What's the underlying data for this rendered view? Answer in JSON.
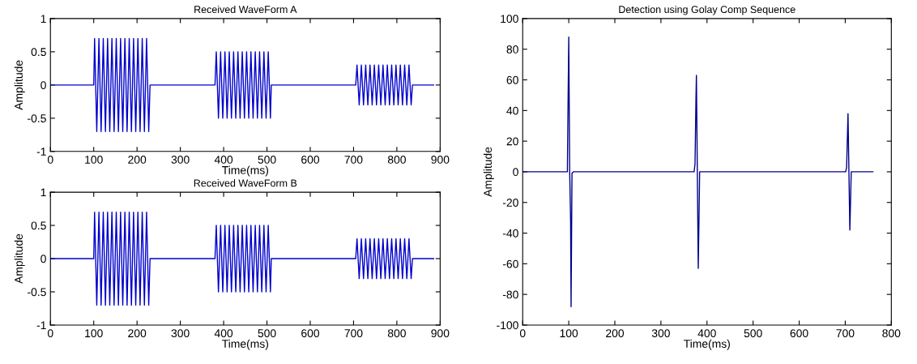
{
  "chart_data": [
    {
      "type": "line",
      "title": "Received WaveForm A",
      "xlabel": "Time(ms)",
      "ylabel": "Amplitude",
      "xlim": [
        0,
        900
      ],
      "xticks": [
        0,
        100,
        200,
        300,
        400,
        500,
        600,
        700,
        800,
        900
      ],
      "ylim": [
        -1,
        1
      ],
      "yticks": [
        -1,
        -0.5,
        0,
        0.5,
        1
      ],
      "series": [
        {
          "color": "#0000cc",
          "x": [
            0,
            100,
            102,
            107,
            112,
            117,
            122,
            127,
            132,
            137,
            142,
            147,
            152,
            157,
            162,
            167,
            172,
            177,
            182,
            187,
            192,
            197,
            202,
            207,
            212,
            217,
            222,
            227,
            230,
            380,
            383,
            388,
            393,
            398,
            403,
            408,
            413,
            418,
            423,
            428,
            433,
            438,
            443,
            448,
            453,
            458,
            463,
            468,
            473,
            478,
            483,
            488,
            493,
            498,
            503,
            508,
            510,
            705,
            708,
            713,
            718,
            723,
            728,
            733,
            738,
            743,
            748,
            753,
            758,
            763,
            768,
            773,
            778,
            783,
            788,
            793,
            798,
            803,
            808,
            813,
            818,
            823,
            828,
            833,
            836,
            885
          ],
          "values": [
            0,
            0,
            0.7,
            -0.7,
            0.7,
            -0.7,
            0.7,
            -0.7,
            0.7,
            -0.7,
            0.7,
            -0.7,
            0.7,
            -0.7,
            0.7,
            -0.7,
            0.7,
            -0.7,
            0.7,
            -0.7,
            0.7,
            -0.7,
            0.7,
            -0.7,
            0.7,
            -0.7,
            0.7,
            -0.7,
            0,
            0,
            0.5,
            -0.5,
            0.5,
            -0.5,
            0.5,
            -0.5,
            0.5,
            -0.5,
            0.5,
            -0.5,
            0.5,
            -0.5,
            0.5,
            -0.5,
            0.5,
            -0.5,
            0.5,
            -0.5,
            0.5,
            -0.5,
            0.5,
            -0.5,
            0.5,
            -0.5,
            0.5,
            -0.5,
            0,
            0,
            0.3,
            -0.3,
            0.3,
            -0.3,
            0.3,
            -0.3,
            0.3,
            -0.3,
            0.3,
            -0.3,
            0.3,
            -0.3,
            0.3,
            -0.3,
            0.3,
            -0.3,
            0.3,
            -0.3,
            0.3,
            -0.3,
            0.3,
            -0.3,
            0.3,
            -0.3,
            0.3,
            -0.3,
            0,
            0
          ]
        }
      ]
    },
    {
      "type": "line",
      "title": "Received WaveForm B",
      "xlabel": "Time(ms)",
      "ylabel": "Amplitude",
      "xlim": [
        0,
        900
      ],
      "xticks": [
        0,
        100,
        200,
        300,
        400,
        500,
        600,
        700,
        800,
        900
      ],
      "ylim": [
        -1,
        1
      ],
      "yticks": [
        -1,
        -0.5,
        0,
        0.5,
        1
      ],
      "series": [
        {
          "color": "#0000cc",
          "x": [
            0,
            100,
            102,
            107,
            112,
            117,
            122,
            127,
            132,
            137,
            142,
            147,
            152,
            157,
            162,
            167,
            172,
            177,
            182,
            187,
            192,
            197,
            202,
            207,
            212,
            217,
            222,
            227,
            230,
            380,
            383,
            388,
            393,
            398,
            403,
            408,
            413,
            418,
            423,
            428,
            433,
            438,
            443,
            448,
            453,
            458,
            463,
            468,
            473,
            478,
            483,
            488,
            493,
            498,
            503,
            508,
            510,
            705,
            708,
            713,
            718,
            723,
            728,
            733,
            738,
            743,
            748,
            753,
            758,
            763,
            768,
            773,
            778,
            783,
            788,
            793,
            798,
            803,
            808,
            813,
            818,
            823,
            828,
            833,
            836,
            885
          ],
          "values": [
            0,
            0,
            0.7,
            -0.7,
            0.7,
            -0.7,
            0.7,
            -0.7,
            0.7,
            -0.7,
            0.7,
            -0.7,
            0.7,
            -0.7,
            0.7,
            -0.7,
            0.7,
            -0.7,
            0.7,
            -0.7,
            0.7,
            -0.7,
            0.7,
            -0.7,
            0.7,
            -0.7,
            0.7,
            -0.7,
            0,
            0,
            0.5,
            -0.5,
            0.5,
            -0.5,
            0.5,
            -0.5,
            0.5,
            -0.5,
            0.5,
            -0.5,
            0.5,
            -0.5,
            0.5,
            -0.5,
            0.5,
            -0.5,
            0.5,
            -0.5,
            0.5,
            -0.5,
            0.5,
            -0.5,
            0.5,
            -0.5,
            0.5,
            -0.5,
            0,
            0,
            0.3,
            -0.3,
            0.3,
            -0.3,
            0.3,
            -0.3,
            0.3,
            -0.3,
            0.3,
            -0.3,
            0.3,
            -0.3,
            0.3,
            -0.3,
            0.3,
            -0.3,
            0.3,
            -0.3,
            0.3,
            -0.3,
            0.3,
            -0.3,
            0.3,
            -0.3,
            0.3,
            -0.3,
            0,
            0
          ]
        }
      ]
    },
    {
      "type": "line",
      "title": "Detection using Golay Comp Sequence",
      "xlabel": "Time(ms)",
      "ylabel": "Amplitude",
      "xlim": [
        0,
        800
      ],
      "xticks": [
        0,
        100,
        200,
        300,
        400,
        500,
        600,
        700,
        800
      ],
      "ylim": [
        -100,
        100
      ],
      "yticks": [
        -100,
        -80,
        -60,
        -40,
        -20,
        0,
        20,
        40,
        60,
        80,
        100
      ],
      "series": [
        {
          "color": "#00008b",
          "x": [
            0,
            97,
            98,
            100,
            102,
            104,
            105,
            107,
            110,
            372,
            374,
            376,
            377,
            379,
            381,
            383,
            384,
            701,
            703,
            706,
            708,
            710,
            712,
            713,
            760
          ],
          "values": [
            0,
            0,
            32,
            88,
            0,
            -32,
            -88,
            -1,
            0,
            0,
            5,
            47,
            63,
            0,
            -63,
            -23,
            0,
            0,
            3,
            38,
            0,
            -38,
            -13,
            0,
            0
          ]
        }
      ]
    }
  ]
}
